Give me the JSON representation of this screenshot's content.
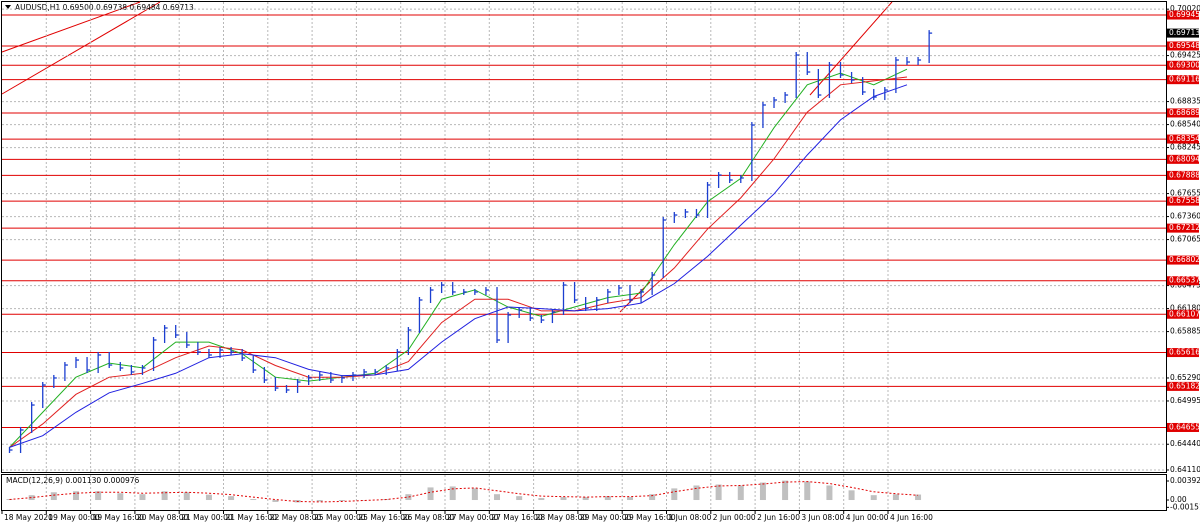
{
  "chart_data": [
    {
      "type": "ohlc",
      "title": "AUDUSD,H1  0.69500 0.69738 0.69484 0.69713",
      "color": "#1c3fd0",
      "close": [
        0.64366,
        0.64623,
        0.64943,
        0.652,
        0.6529,
        0.65456,
        0.6552,
        0.65392,
        0.65585,
        0.65456,
        0.65418,
        0.65367,
        0.65418,
        0.65777,
        0.65931,
        0.65841,
        0.65713,
        0.65623,
        0.65585,
        0.65649,
        0.65623,
        0.65546,
        0.65392,
        0.65264,
        0.65161,
        0.65136,
        0.65238,
        0.6529,
        0.65328,
        0.65264,
        0.6529,
        0.65328,
        0.65367,
        0.65367,
        0.65418,
        0.65623,
        0.65905,
        0.6629,
        0.66418,
        0.66482,
        0.66393,
        0.66393,
        0.66393,
        0.66418,
        0.65777,
        0.66098,
        0.66162,
        0.66059,
        0.66033,
        0.66136,
        0.66482,
        0.6629,
        0.66187,
        0.6629,
        0.66393,
        0.66444,
        0.6629,
        0.66393,
        0.66611,
        0.67316,
        0.6738,
        0.67419,
        0.6738,
        0.67765,
        0.67893,
        0.67829,
        0.67855,
        0.68534,
        0.68791,
        0.68855,
        0.68919,
        0.69432,
        0.69214,
        0.68919,
        0.69304,
        0.69176,
        0.69111,
        0.68958,
        0.68893,
        0.68983,
        0.69368,
        0.69342,
        0.69368,
        0.69713
      ],
      "moving_averages": [
        {
          "color": "#22b022",
          "values": [
            0.644,
            0.6485,
            0.653,
            0.6548,
            0.6542,
            0.6575,
            0.6575,
            0.656,
            0.653,
            0.6525,
            0.653,
            0.6535,
            0.6565,
            0.663,
            0.6642,
            0.662,
            0.6608,
            0.662,
            0.6632,
            0.6638,
            0.67,
            0.6755,
            0.6785,
            0.685,
            0.6905,
            0.692,
            0.6905,
            0.6925
          ]
        },
        {
          "color": "#e02020",
          "values": [
            0.644,
            0.647,
            0.6508,
            0.653,
            0.6535,
            0.6555,
            0.657,
            0.6565,
            0.6545,
            0.653,
            0.653,
            0.6533,
            0.655,
            0.66,
            0.663,
            0.663,
            0.6615,
            0.6615,
            0.6625,
            0.6632,
            0.667,
            0.672,
            0.676,
            0.681,
            0.687,
            0.6905,
            0.691,
            0.6915
          ]
        },
        {
          "color": "#2020e0",
          "values": [
            0.644,
            0.6455,
            0.6485,
            0.651,
            0.6522,
            0.6535,
            0.6555,
            0.656,
            0.6555,
            0.654,
            0.6532,
            0.6533,
            0.654,
            0.6575,
            0.6605,
            0.662,
            0.6618,
            0.6615,
            0.6618,
            0.6625,
            0.665,
            0.6685,
            0.6725,
            0.6765,
            0.6815,
            0.686,
            0.689,
            0.6905
          ]
        }
      ],
      "ylim": [
        0.64084,
        0.70112
      ],
      "yticks": [
        {
          "value": 0.7002,
          "label": "0.70020"
        },
        0.69425,
        0.68835,
        {
          "value": 0.6854,
          "label": "0.68540"
        },
        0.68245,
        0.67655,
        {
          "value": 0.6736,
          "label": "0.67360"
        },
        0.67065,
        0.66475,
        {
          "value": 0.6618,
          "label": "0.66180"
        },
        0.65885,
        {
          "value": 0.6529,
          "label": "0.65290"
        },
        0.64995,
        {
          "value": 0.6444,
          "label": "0.64440"
        },
        {
          "value": 0.6411,
          "label": "0.64110"
        }
      ],
      "levels": [
        0.69945,
        0.69548,
        {
          "value": 0.693,
          "label": "0.69300"
        },
        0.69116,
        0.68689,
        0.68354,
        0.68094,
        0.67888,
        0.67558,
        0.67212,
        0.66802,
        0.66537,
        0.66107,
        0.65616,
        0.65182,
        0.64655
      ],
      "level_color": "#e00000",
      "last_price": 0.69713,
      "grid": true
    },
    {
      "type": "macd",
      "title": "MACD(12,26,9) 0.001130 0.000976",
      "color": "#c0c0c0",
      "signal_color": "#e00000",
      "histogram": [
        0.0002,
        0.001,
        0.0016,
        0.0018,
        0.0018,
        0.0014,
        0.0012,
        0.0018,
        0.0016,
        0.0011,
        0.0008,
        0.0002,
        -0.0004,
        -0.0005,
        -0.0003,
        -0.0002,
        0.0,
        0.0002,
        0.0012,
        0.0026,
        0.0028,
        0.0024,
        0.0012,
        0.0008,
        0.0004,
        0.0006,
        0.0006,
        0.0008,
        0.0006,
        0.0012,
        0.0024,
        0.003,
        0.0032,
        0.003,
        0.0036,
        0.004,
        0.0038,
        0.003,
        0.002,
        0.001,
        0.0012,
        0.00113
      ],
      "signal": [
        0.0001,
        0.0005,
        0.001,
        0.0014,
        0.0016,
        0.0016,
        0.0014,
        0.0015,
        0.0016,
        0.0014,
        0.0011,
        0.0006,
        0.0001,
        -0.0003,
        -0.0004,
        -0.0003,
        -0.0001,
        0.0001,
        0.0006,
        0.0016,
        0.0023,
        0.0025,
        0.0019,
        0.0013,
        0.0008,
        0.0007,
        0.0006,
        0.0007,
        0.0007,
        0.0009,
        0.0017,
        0.0024,
        0.0029,
        0.003,
        0.0033,
        0.0037,
        0.0038,
        0.0034,
        0.0026,
        0.0017,
        0.0013,
        0.000976
      ],
      "ylim": [
        -0.00206,
        0.00516
      ],
      "yticks": [
        0.003922,
        {
          "value": 0,
          "label": "0.00"
        },
        -0.001514
      ]
    }
  ],
  "time_axis": [
    "18 May 2020",
    "19 May 00:00",
    "19 May 16:00",
    "20 May 08:00",
    "21 May 00:00",
    "21 May 16:00",
    "22 May 08:00",
    "25 May 00:00",
    "25 May 16:00",
    "26 May 08:00",
    "27 May 00:00",
    "27 May 16:00",
    "28 May 08:00",
    "29 May 00:00",
    "29 May 16:00",
    "1 Jun 08:00",
    "2 Jun 00:00",
    "2 Jun 16:00",
    "3 Jun 08:00",
    "4 Jun 00:00",
    "4 Jun 16:00"
  ]
}
